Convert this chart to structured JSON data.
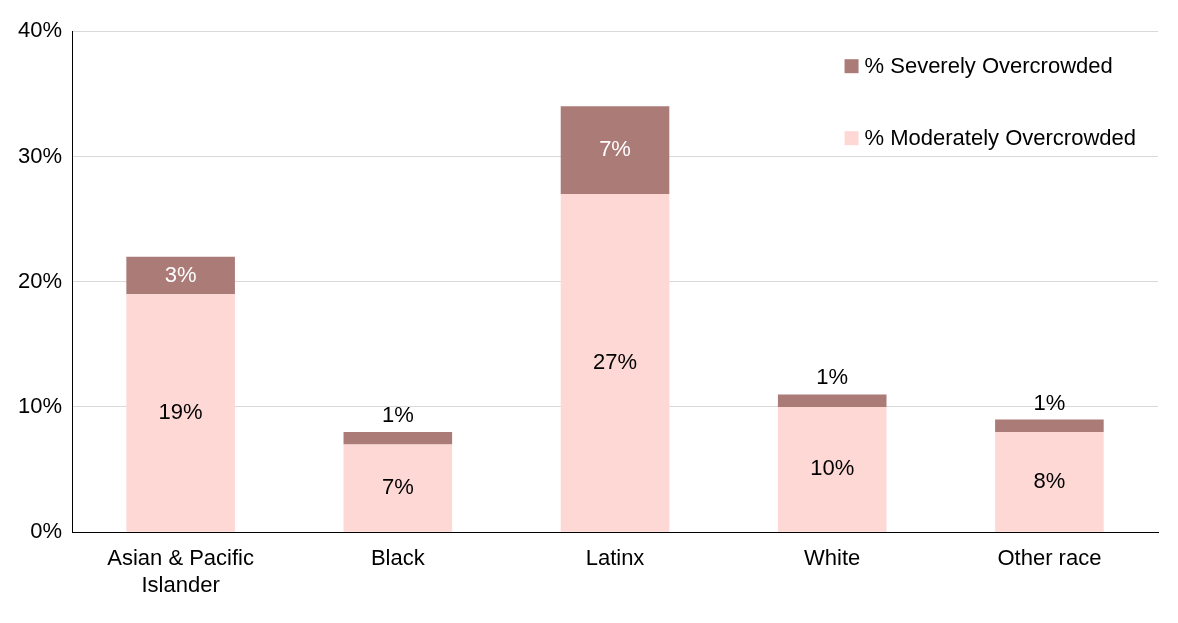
{
  "chart_data": {
    "type": "bar",
    "stacked": true,
    "categories": [
      "Asian & Pacific Islander",
      "Black",
      "Latinx",
      "White",
      "Other race"
    ],
    "series": [
      {
        "name": "% Moderately Overcrowded",
        "color": "#fdd8d5",
        "values": [
          19,
          7,
          27,
          10,
          8
        ],
        "value_labels": [
          "19%",
          "7%",
          "27%",
          "10%",
          "8%"
        ]
      },
      {
        "name": "% Severely Overcrowded",
        "color": "#ab7b77",
        "values": [
          3,
          1,
          7,
          1,
          1
        ],
        "value_labels": [
          "3%",
          "1%",
          "7%",
          "1%",
          "1%"
        ]
      }
    ],
    "ylim": [
      0,
      40
    ],
    "yticks": [
      {
        "value": 0,
        "label": "0%"
      },
      {
        "value": 10,
        "label": "10%"
      },
      {
        "value": 20,
        "label": "20%"
      },
      {
        "value": 30,
        "label": "30%"
      },
      {
        "value": 40,
        "label": "40%"
      }
    ],
    "grid": "y",
    "legend": "top right"
  }
}
